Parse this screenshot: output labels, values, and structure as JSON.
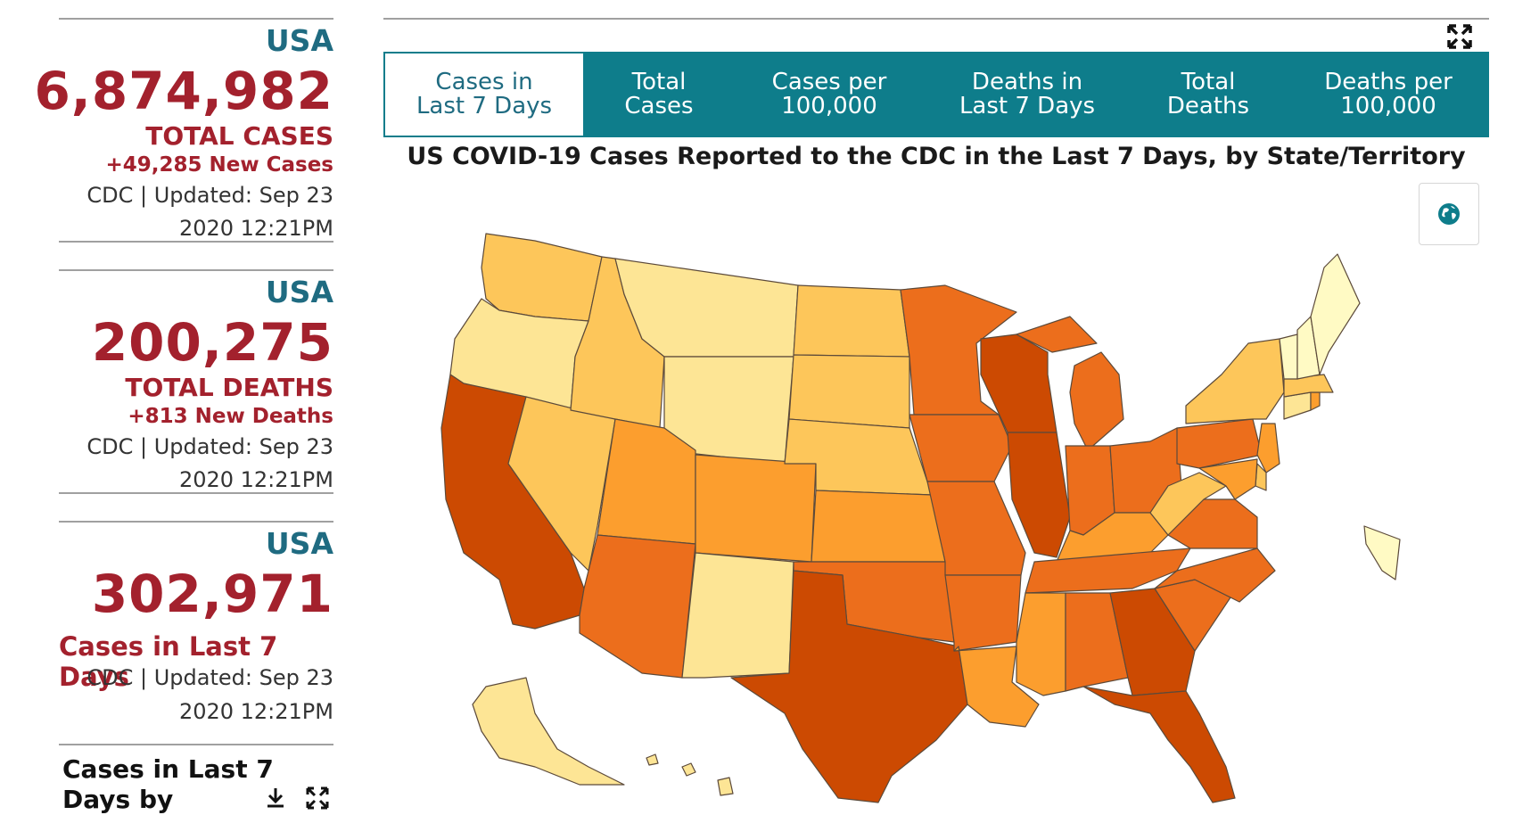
{
  "cards": [
    {
      "country": "USA",
      "value": "6,874,982",
      "label": "TOTAL CASES",
      "sub": "+49,285 New Cases",
      "source_line1": "CDC | Updated: Sep 23",
      "source_line2": "2020 12:21PM"
    },
    {
      "country": "USA",
      "value": "200,275",
      "label": "TOTAL DEATHS",
      "sub": "+813 New Deaths",
      "source_line1": "CDC | Updated: Sep 23",
      "source_line2": "2020 12:21PM"
    },
    {
      "country": "USA",
      "value": "302,971",
      "label": "Cases in Last 7 Days",
      "source_line1": "CDC | Updated: Sep 23",
      "source_line2": "2020 12:21PM"
    }
  ],
  "bottom_panel": {
    "title": "Cases in Last 7 Days by"
  },
  "tabs": [
    {
      "line1": "Cases in",
      "line2": "Last 7 Days",
      "active": true
    },
    {
      "line1": "Total",
      "line2": "Cases",
      "active": false
    },
    {
      "line1": "Cases per",
      "line2": "100,000",
      "active": false
    },
    {
      "line1": "Deaths in",
      "line2": "Last 7 Days",
      "active": false
    },
    {
      "line1": "Total",
      "line2": "Deaths",
      "active": false
    },
    {
      "line1": "Deaths per",
      "line2": "100,000",
      "active": false
    }
  ],
  "map": {
    "title": "US COVID-19 Cases Reported to the CDC in the Last 7 Days, by State/Territory",
    "color_scale": [
      "#fffac4",
      "#fde595",
      "#fdc65a",
      "#fc9e2e",
      "#ec6e1c",
      "#cc4a02"
    ],
    "state_levels": {
      "WA": 2,
      "OR": 1,
      "CA": 5,
      "NV": 2,
      "ID": 2,
      "MT": 1,
      "WY": 1,
      "UT": 3,
      "AZ": 4,
      "CO": 3,
      "NM": 1,
      "ND": 2,
      "SD": 2,
      "NE": 2,
      "KS": 3,
      "OK": 4,
      "TX": 5,
      "MN": 4,
      "IA": 4,
      "MO": 4,
      "AR": 4,
      "LA": 3,
      "WI": 5,
      "IL": 5,
      "MI": 4,
      "IN": 4,
      "OH": 4,
      "KY": 3,
      "TN": 4,
      "MS": 3,
      "AL": 4,
      "GA": 5,
      "FL": 5,
      "SC": 4,
      "NC": 4,
      "VA": 4,
      "WV": 2,
      "PA": 4,
      "NY": 2,
      "NJ": 3,
      "DE": 2,
      "MD": 3,
      "CT": 1,
      "RI": 3,
      "MA": 2,
      "VT": 0,
      "NH": 0,
      "ME": 0,
      "AK": 1,
      "HI": 1,
      "PR": 0
    }
  },
  "icons": {
    "fullscreen": "expand-icon",
    "globe": "globe-icon",
    "download": "download-icon",
    "expand_small": "expand-icon"
  }
}
